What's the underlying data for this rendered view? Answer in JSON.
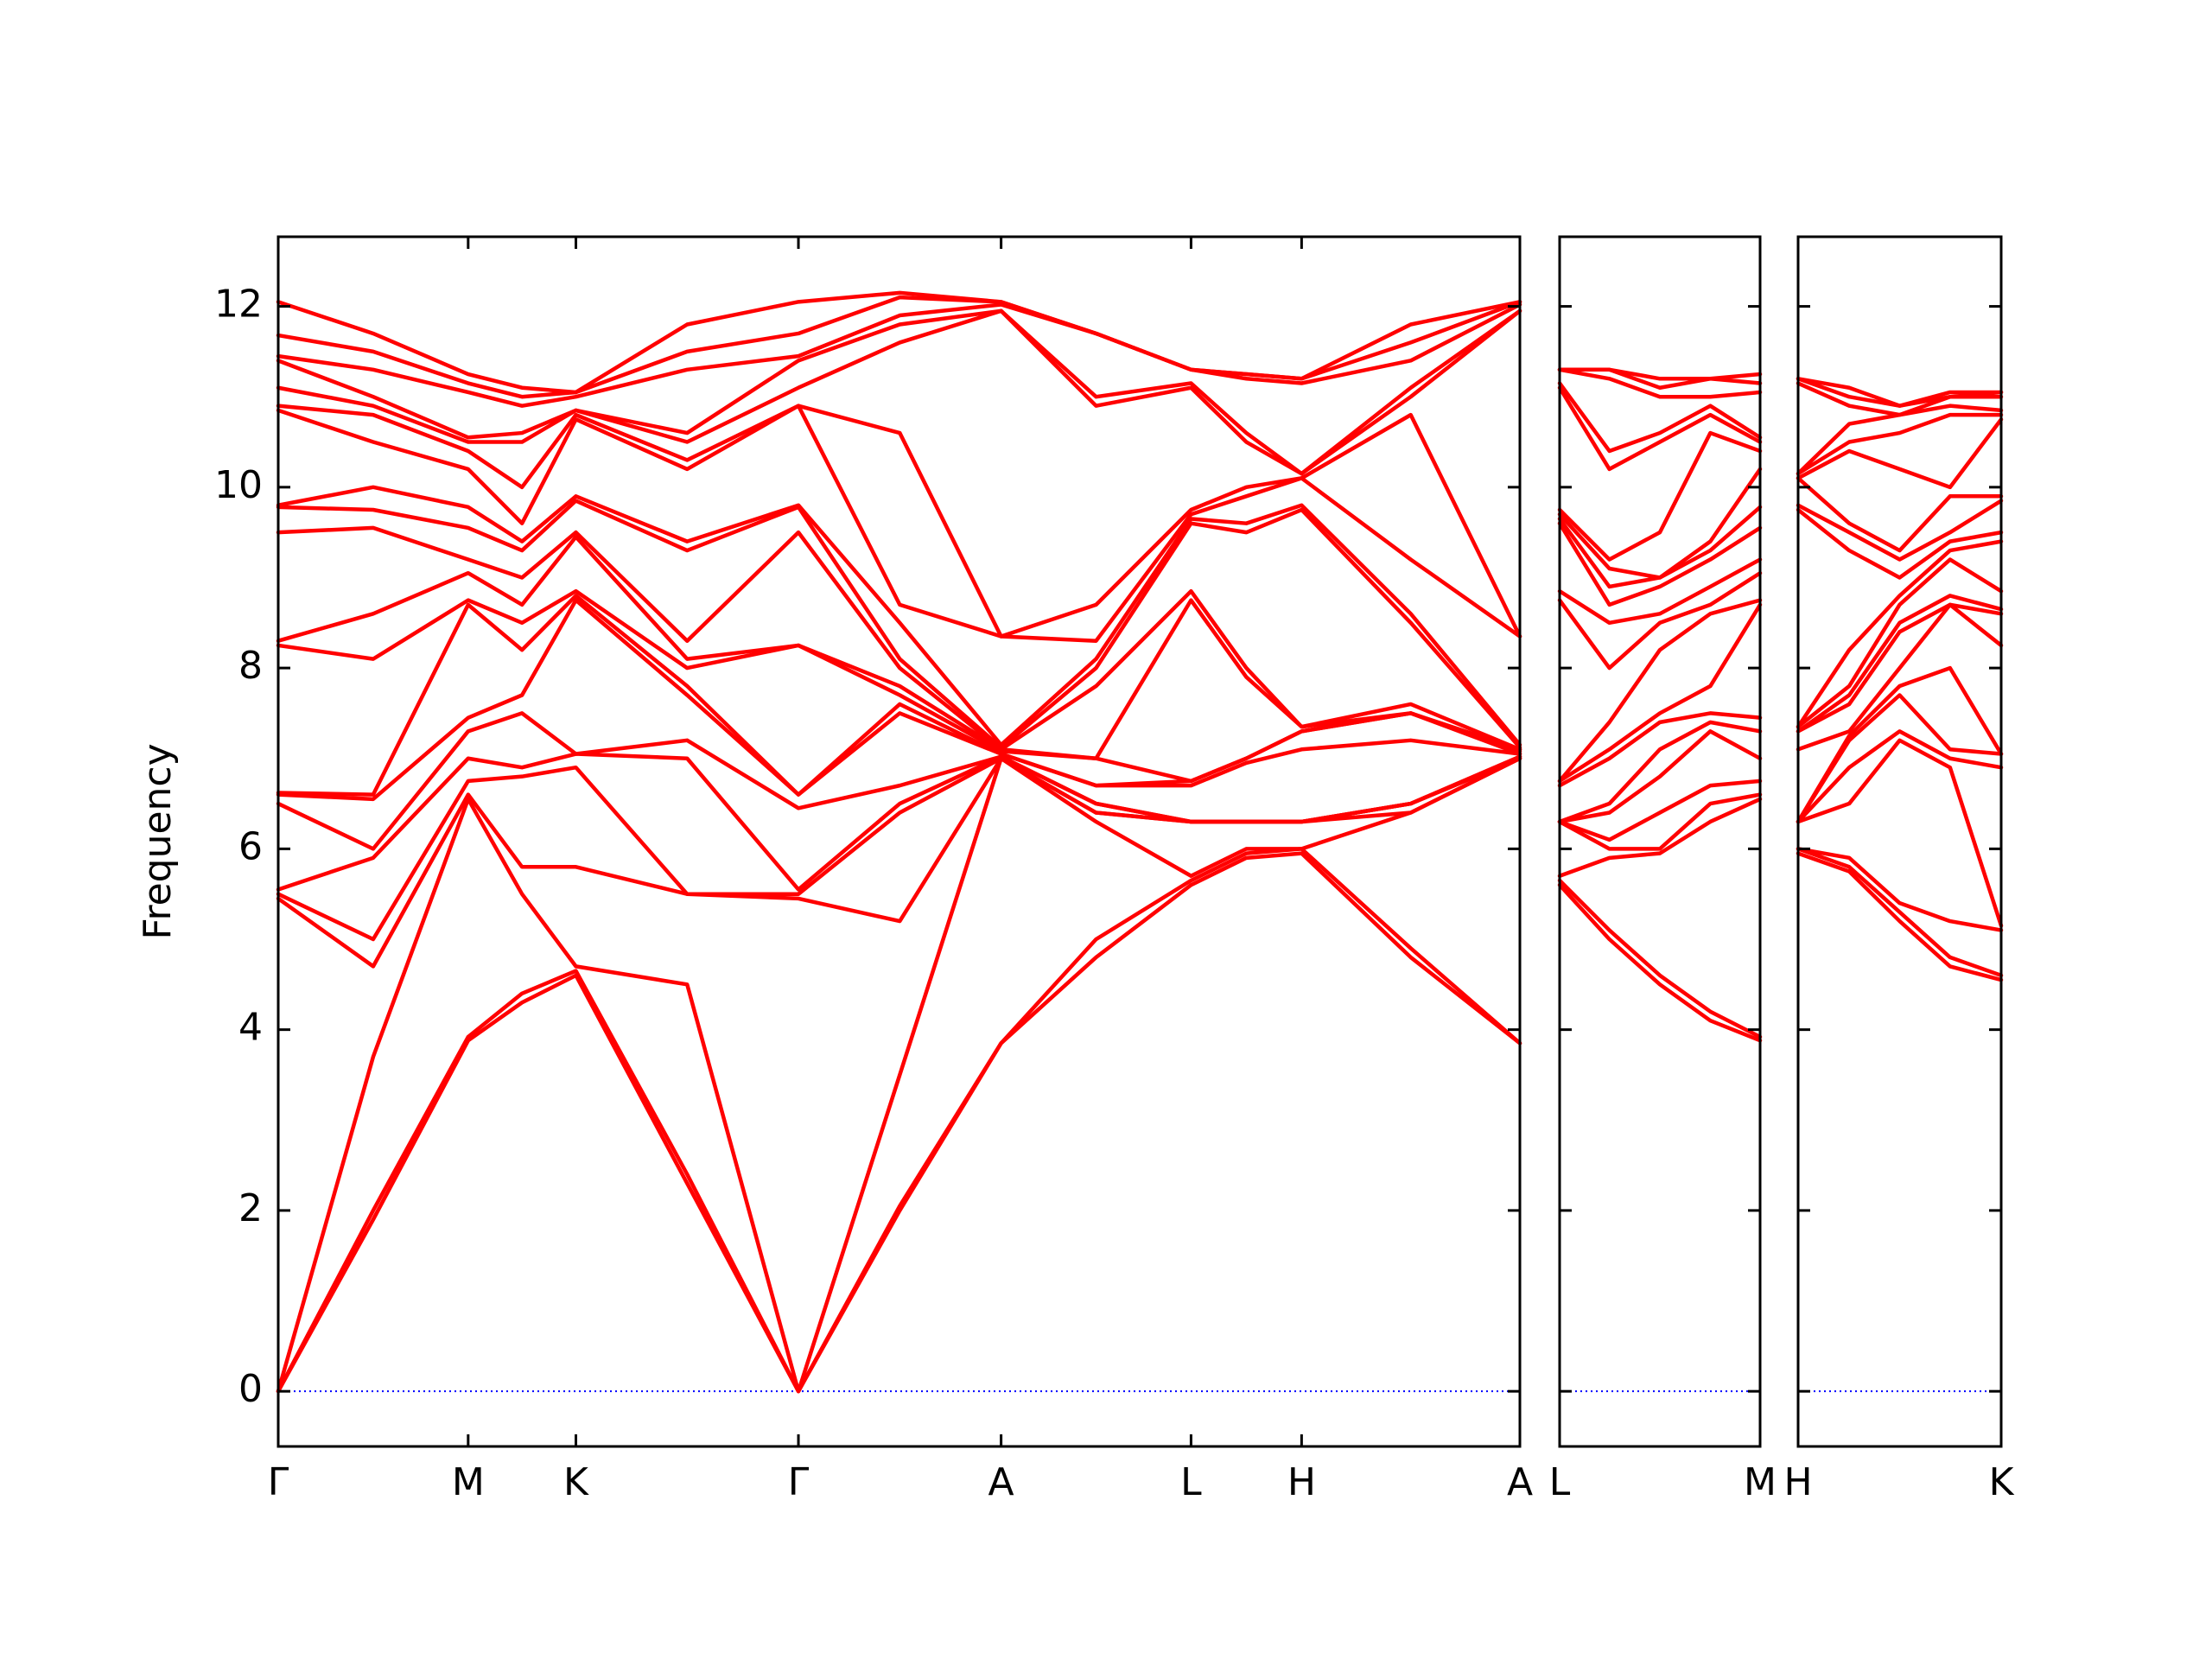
{
  "chart_data": [
    {
      "type": "line",
      "ylabel": "Frequency",
      "color": "#ff0000",
      "ytick_labels": true,
      "zero_line": {
        "y": 0,
        "color": "#0000ff"
      },
      "x": [
        0,
        0.67,
        1.34,
        1.72,
        2.1,
        2.885,
        3.67,
        4.385,
        5.1,
        5.77,
        6.44,
        6.83,
        7.22,
        7.99,
        8.76
      ],
      "xlim": [
        0,
        8.76
      ],
      "ylim": [
        -0.61,
        12.77
      ],
      "xticks": [
        {
          "value": 0,
          "label": "Γ"
        },
        {
          "value": 1.34,
          "label": "M"
        },
        {
          "value": 2.1,
          "label": "K"
        },
        {
          "value": 3.67,
          "label": "Γ"
        },
        {
          "value": 5.1,
          "label": "A"
        },
        {
          "value": 6.44,
          "label": "L"
        },
        {
          "value": 7.22,
          "label": "H"
        },
        {
          "value": 8.76,
          "label": "A"
        }
      ],
      "yticks": [
        0,
        2,
        4,
        6,
        8,
        10,
        12
      ],
      "series": [
        {
          "values": [
            0,
            1.9,
            3.88,
            4.3,
            4.6,
            2.3,
            0,
            2.0,
            3.85,
            4.8,
            5.6,
            5.9,
            5.95,
            4.8,
            3.85
          ]
        },
        {
          "values": [
            0,
            2.0,
            3.92,
            4.4,
            4.65,
            2.4,
            0,
            2.05,
            3.85,
            5.0,
            5.65,
            5.95,
            6.0,
            4.9,
            3.85
          ]
        },
        {
          "values": [
            0,
            3.7,
            6.55,
            5.5,
            4.7,
            4.5,
            0,
            3.5,
            7.0,
            6.3,
            5.7,
            6.0,
            6.0,
            6.4,
            7.0
          ]
        },
        {
          "values": [
            5.45,
            4.7,
            6.6,
            5.8,
            5.8,
            5.5,
            5.45,
            5.2,
            7.0,
            6.4,
            6.3,
            6.3,
            6.3,
            6.4,
            7.0
          ]
        },
        {
          "values": [
            5.5,
            5.0,
            6.75,
            6.8,
            6.9,
            5.5,
            5.5,
            6.4,
            7.0,
            6.4,
            6.3,
            6.3,
            6.3,
            6.5,
            7.0
          ]
        },
        {
          "values": [
            5.55,
            5.9,
            7.0,
            6.9,
            7.05,
            7.0,
            5.55,
            6.5,
            7.02,
            6.5,
            6.3,
            6.3,
            6.3,
            6.5,
            7.02
          ]
        },
        {
          "values": [
            6.5,
            6.0,
            7.3,
            7.5,
            7.05,
            7.2,
            6.45,
            6.7,
            7.02,
            6.5,
            6.3,
            6.3,
            6.3,
            6.5,
            7.02
          ]
        },
        {
          "values": [
            6.6,
            6.55,
            7.45,
            7.7,
            8.75,
            7.7,
            6.6,
            7.5,
            7.05,
            6.7,
            6.7,
            6.95,
            7.1,
            7.2,
            7.05
          ]
        },
        {
          "values": [
            6.62,
            6.6,
            8.7,
            8.2,
            8.8,
            7.8,
            6.6,
            7.6,
            7.05,
            6.7,
            6.75,
            7.0,
            7.3,
            7.5,
            7.05
          ]
        },
        {
          "values": [
            8.25,
            8.1,
            8.75,
            8.5,
            8.85,
            8.0,
            8.25,
            7.7,
            7.08,
            7.0,
            6.75,
            7.0,
            7.3,
            7.5,
            7.08
          ]
        },
        {
          "values": [
            8.3,
            8.6,
            9.05,
            8.7,
            9.45,
            8.1,
            8.25,
            7.8,
            7.1,
            7.0,
            8.75,
            7.9,
            7.35,
            7.5,
            7.1
          ]
        },
        {
          "values": [
            9.5,
            9.55,
            9.2,
            9.0,
            9.5,
            8.3,
            9.5,
            8.0,
            7.1,
            7.8,
            8.85,
            8.0,
            7.35,
            7.6,
            7.1
          ]
        },
        {
          "values": [
            9.78,
            9.75,
            9.55,
            9.3,
            9.85,
            9.3,
            9.78,
            8.1,
            7.12,
            8.0,
            9.6,
            9.5,
            9.75,
            8.5,
            7.12
          ]
        },
        {
          "values": [
            9.8,
            10.0,
            9.78,
            9.4,
            9.9,
            9.4,
            9.8,
            8.5,
            7.15,
            8.1,
            9.65,
            9.6,
            9.8,
            8.6,
            7.15
          ]
        },
        {
          "values": [
            10.85,
            10.5,
            10.2,
            9.6,
            10.75,
            10.2,
            10.9,
            8.7,
            8.35,
            8.3,
            9.7,
            9.9,
            10.1,
            9.2,
            8.35
          ]
        },
        {
          "values": [
            10.9,
            10.8,
            10.4,
            10.0,
            10.8,
            10.3,
            10.9,
            10.6,
            8.35,
            8.7,
            9.75,
            10.0,
            10.1,
            10.8,
            8.35
          ]
        },
        {
          "values": [
            11.1,
            10.9,
            10.5,
            10.5,
            10.85,
            10.5,
            11.1,
            11.6,
            11.95,
            10.9,
            11.1,
            10.5,
            10.15,
            11.0,
            11.95
          ]
        },
        {
          "values": [
            11.4,
            11.0,
            10.55,
            10.6,
            10.85,
            10.6,
            11.4,
            11.8,
            11.95,
            11.0,
            11.15,
            10.6,
            10.15,
            11.1,
            11.95
          ]
        },
        {
          "values": [
            11.45,
            11.3,
            11.05,
            10.9,
            11.0,
            11.3,
            11.45,
            11.9,
            12.02,
            11.7,
            11.3,
            11.2,
            11.15,
            11.4,
            12.02
          ]
        },
        {
          "values": [
            11.68,
            11.5,
            11.15,
            11.0,
            11.05,
            11.5,
            11.7,
            12.1,
            12.05,
            11.7,
            11.3,
            11.25,
            11.2,
            11.6,
            12.05
          ]
        },
        {
          "values": [
            12.05,
            11.7,
            11.25,
            11.1,
            11.05,
            11.8,
            12.05,
            12.15,
            12.05,
            11.7,
            11.3,
            11.25,
            11.2,
            11.8,
            12.05
          ]
        }
      ]
    },
    {
      "type": "line",
      "color": "#ff0000",
      "ytick_labels": false,
      "zero_line": {
        "y": 0,
        "color": "#0000ff"
      },
      "x": [
        0,
        0.35,
        0.705,
        1.06,
        1.41
      ],
      "xlim": [
        0,
        1.41
      ],
      "ylim": [
        -0.61,
        12.77
      ],
      "xticks": [
        {
          "value": 0,
          "label": "L"
        },
        {
          "value": 1.41,
          "label": "M"
        }
      ],
      "yticks": [
        0,
        2,
        4,
        6,
        8,
        10,
        12
      ],
      "series": [
        {
          "values": [
            5.6,
            5.0,
            4.5,
            4.1,
            3.88
          ]
        },
        {
          "values": [
            5.65,
            5.1,
            4.6,
            4.2,
            3.92
          ]
        },
        {
          "values": [
            5.7,
            5.9,
            5.95,
            6.3,
            6.55
          ]
        },
        {
          "values": [
            6.3,
            6.0,
            6.0,
            6.5,
            6.6
          ]
        },
        {
          "values": [
            6.3,
            6.1,
            6.4,
            6.7,
            6.75
          ]
        },
        {
          "values": [
            6.3,
            6.4,
            6.8,
            7.3,
            7.0
          ]
        },
        {
          "values": [
            6.3,
            6.5,
            7.1,
            7.4,
            7.3
          ]
        },
        {
          "values": [
            6.7,
            7.0,
            7.4,
            7.5,
            7.45
          ]
        },
        {
          "values": [
            6.75,
            7.1,
            7.5,
            7.8,
            8.7
          ]
        },
        {
          "values": [
            6.75,
            7.4,
            8.2,
            8.6,
            8.75
          ]
        },
        {
          "values": [
            8.75,
            8.0,
            8.5,
            8.7,
            9.05
          ]
        },
        {
          "values": [
            8.85,
            8.5,
            8.6,
            8.9,
            9.2
          ]
        },
        {
          "values": [
            9.6,
            8.7,
            8.9,
            9.2,
            9.55
          ]
        },
        {
          "values": [
            9.65,
            8.9,
            9.0,
            9.3,
            9.78
          ]
        },
        {
          "values": [
            9.7,
            9.1,
            9.0,
            9.4,
            10.2
          ]
        },
        {
          "values": [
            9.75,
            9.2,
            9.5,
            10.6,
            10.4
          ]
        },
        {
          "values": [
            11.1,
            10.2,
            10.5,
            10.8,
            10.5
          ]
        },
        {
          "values": [
            11.15,
            10.4,
            10.6,
            10.9,
            10.55
          ]
        },
        {
          "values": [
            11.3,
            11.2,
            11.0,
            11.0,
            11.05
          ]
        },
        {
          "values": [
            11.3,
            11.3,
            11.1,
            11.2,
            11.15
          ]
        },
        {
          "values": [
            11.3,
            11.3,
            11.2,
            11.2,
            11.25
          ]
        }
      ]
    },
    {
      "type": "line",
      "color": "#ff0000",
      "ytick_labels": false,
      "zero_line": {
        "y": 0,
        "color": "#0000ff"
      },
      "x": [
        0,
        0.36,
        0.715,
        1.07,
        1.43
      ],
      "xlim": [
        0,
        1.43
      ],
      "ylim": [
        -0.61,
        12.77
      ],
      "xticks": [
        {
          "value": 0,
          "label": "H"
        },
        {
          "value": 1.43,
          "label": "K"
        }
      ],
      "yticks": [
        0,
        2,
        4,
        6,
        8,
        10,
        12
      ],
      "series": [
        {
          "values": [
            5.95,
            5.75,
            5.2,
            4.7,
            4.55
          ]
        },
        {
          "values": [
            6.0,
            5.8,
            5.3,
            4.8,
            4.6
          ]
        },
        {
          "values": [
            6.0,
            5.9,
            5.4,
            5.2,
            5.1
          ]
        },
        {
          "values": [
            6.3,
            6.5,
            7.2,
            6.9,
            5.15
          ]
        },
        {
          "values": [
            6.3,
            6.9,
            7.3,
            7.0,
            6.9
          ]
        },
        {
          "values": [
            6.3,
            7.2,
            7.7,
            7.1,
            7.05
          ]
        },
        {
          "values": [
            6.3,
            7.25,
            7.8,
            8.0,
            7.05
          ]
        },
        {
          "values": [
            7.1,
            7.3,
            8.0,
            8.7,
            8.25
          ]
        },
        {
          "values": [
            7.3,
            7.6,
            8.4,
            8.7,
            8.6
          ]
        },
        {
          "values": [
            7.3,
            7.7,
            8.5,
            8.8,
            8.65
          ]
        },
        {
          "values": [
            7.35,
            7.8,
            8.7,
            9.2,
            8.85
          ]
        },
        {
          "values": [
            7.35,
            8.2,
            8.8,
            9.3,
            9.4
          ]
        },
        {
          "values": [
            9.75,
            9.3,
            9.0,
            9.4,
            9.5
          ]
        },
        {
          "values": [
            9.8,
            9.5,
            9.2,
            9.5,
            9.85
          ]
        },
        {
          "values": [
            10.1,
            9.6,
            9.3,
            9.9,
            9.9
          ]
        },
        {
          "values": [
            10.1,
            10.4,
            10.2,
            10.0,
            10.75
          ]
        },
        {
          "values": [
            10.15,
            10.5,
            10.6,
            10.8,
            10.8
          ]
        },
        {
          "values": [
            10.15,
            10.7,
            10.8,
            10.9,
            10.85
          ]
        },
        {
          "values": [
            11.15,
            10.9,
            10.8,
            11.0,
            11.0
          ]
        },
        {
          "values": [
            11.2,
            11.0,
            10.9,
            11.0,
            11.05
          ]
        },
        {
          "values": [
            11.2,
            11.1,
            10.9,
            11.05,
            11.05
          ]
        }
      ]
    }
  ]
}
